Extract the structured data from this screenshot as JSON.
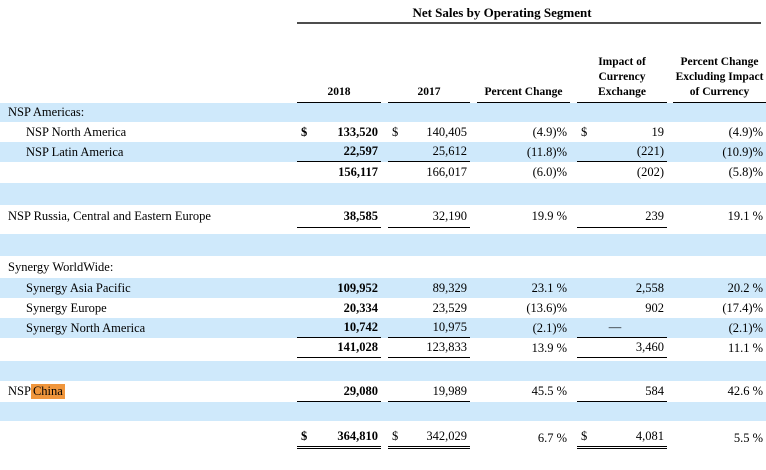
{
  "title": "Net Sales by Operating Segment",
  "columns": [
    "2018",
    "2017",
    "Percent Change",
    "Impact of Currency Exchange",
    "Percent Change Excluding Impact of Currency"
  ],
  "colors": {
    "stripe_blue": "#cfe9fb",
    "highlight_orange": "#f0963c",
    "text": "#000000",
    "title_rule": "#4d4d4d"
  },
  "table": {
    "rows": [
      {
        "h": 19,
        "bg": "stripe",
        "label": "NSP Americas:",
        "indent": 0,
        "cells": null
      },
      {
        "h": 20,
        "bg": "white",
        "label": "NSP North America",
        "indent": 1,
        "cells": [
          {
            "cur": "$",
            "v": "133,520",
            "b": 1
          },
          {
            "cur": "$",
            "v": "140,405"
          },
          {
            "v": "(4.9)%"
          },
          {
            "cur": "$",
            "v": "19"
          },
          {
            "v": "(4.9)%"
          }
        ]
      },
      {
        "h": 20,
        "bg": "stripe",
        "label": "NSP Latin America",
        "indent": 1,
        "cells": [
          {
            "v": "22,597",
            "b": 1,
            "u": 1
          },
          {
            "v": "25,612",
            "u": 1
          },
          {
            "v": "(11.8)%"
          },
          {
            "v": "(221)",
            "u": 1
          },
          {
            "v": "(10.9)%"
          }
        ]
      },
      {
        "h": 21,
        "bg": "white",
        "label": "",
        "indent": 0,
        "cells": [
          {
            "v": "156,117",
            "b": 1
          },
          {
            "v": "166,017"
          },
          {
            "v": "(6.0)%"
          },
          {
            "v": "(202)"
          },
          {
            "v": "(5.8)%"
          }
        ]
      },
      {
        "h": 22,
        "bg": "stripe",
        "label": "",
        "indent": 0,
        "cells": null
      },
      {
        "h": 23,
        "bg": "white",
        "label": "NSP Russia, Central and Eastern Europe",
        "indent": 0,
        "cells": [
          {
            "v": "38,585",
            "b": 1,
            "u": 1
          },
          {
            "v": "32,190",
            "u": 1
          },
          {
            "v": "19.9 %"
          },
          {
            "v": "239",
            "u": 1
          },
          {
            "v": "19.1 %"
          }
        ]
      },
      {
        "h": 6,
        "bg": "white",
        "label": "",
        "indent": 0,
        "cells": null
      },
      {
        "h": 22,
        "bg": "stripe",
        "label": "",
        "indent": 0,
        "cells": null
      },
      {
        "h": 22,
        "bg": "white",
        "label": "Synergy WorldWide:",
        "indent": 0,
        "cells": null
      },
      {
        "h": 20,
        "bg": "stripe",
        "label": "Synergy Asia Pacific",
        "indent": 1,
        "cells": [
          {
            "v": "109,952",
            "b": 1
          },
          {
            "v": "89,329"
          },
          {
            "v": "23.1 %"
          },
          {
            "v": "2,558"
          },
          {
            "v": "20.2 %"
          }
        ]
      },
      {
        "h": 20,
        "bg": "white",
        "label": "Synergy Europe",
        "indent": 1,
        "cells": [
          {
            "v": "20,334",
            "b": 1
          },
          {
            "v": "23,529"
          },
          {
            "v": "(13.6)%"
          },
          {
            "v": "902"
          },
          {
            "v": "(17.4)%"
          }
        ]
      },
      {
        "h": 20,
        "bg": "stripe",
        "label": "Synergy North America",
        "indent": 1,
        "cells": [
          {
            "v": "10,742",
            "b": 1,
            "u": 1
          },
          {
            "v": "10,975",
            "u": 1
          },
          {
            "v": "(2.1)%"
          },
          {
            "v": "—",
            "u": 1,
            "c": 1
          },
          {
            "v": "(2.1)%"
          }
        ]
      },
      {
        "h": 20,
        "bg": "white",
        "label": "",
        "indent": 0,
        "cells": [
          {
            "v": "141,028",
            "b": 1,
            "u": 1
          },
          {
            "v": "123,833",
            "u": 1
          },
          {
            "v": "13.9 %"
          },
          {
            "v": "3,460",
            "u": 1
          },
          {
            "v": "11.1 %"
          }
        ]
      },
      {
        "h": 3,
        "bg": "white",
        "label": "",
        "indent": 0,
        "cells": null
      },
      {
        "h": 20,
        "bg": "stripe",
        "label": "",
        "indent": 0,
        "cells": null
      },
      {
        "h": 21,
        "bg": "white",
        "label": "",
        "label_parts": [
          {
            "text": "NSP "
          },
          {
            "text": "China",
            "highlight": true
          }
        ],
        "indent": 0,
        "cells": [
          {
            "v": "29,080",
            "b": 1,
            "u": 1
          },
          {
            "v": "19,989",
            "u": 1
          },
          {
            "v": "45.5 %"
          },
          {
            "v": "584",
            "u": 1
          },
          {
            "v": "42.6 %"
          }
        ]
      },
      {
        "h": 19,
        "bg": "stripe",
        "label": "",
        "indent": 0,
        "cells": null
      },
      {
        "h": 6,
        "bg": "white",
        "label": "",
        "indent": 0,
        "cells": null
      },
      {
        "h": 22,
        "bg": "white",
        "label": "",
        "indent": 0,
        "cells": [
          {
            "cur": "$",
            "v": "364,810",
            "b": 1,
            "u": 2,
            "cur_b": 1
          },
          {
            "cur": "$",
            "v": "342,029",
            "u": 2
          },
          {
            "v": "6.7 %"
          },
          {
            "cur": "$",
            "v": "4,081",
            "u": 2
          },
          {
            "v": "5.5 %"
          }
        ]
      }
    ]
  }
}
